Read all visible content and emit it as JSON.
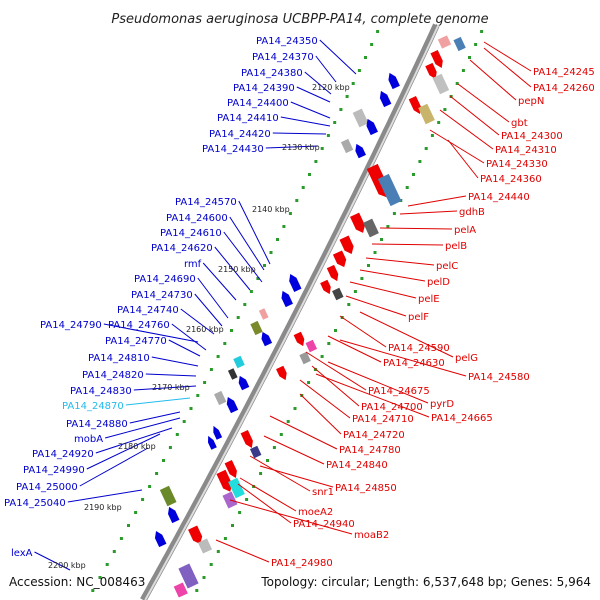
{
  "title": "Pseudomonas aeruginosa UCBPP-PA14, complete genome",
  "footer": {
    "accession": "Accession: NC_008463",
    "topology": "Topology: circular; Length: 6,537,648 bp; Genes: 5,964"
  },
  "colors": {
    "plus_label": "#e00000",
    "minus_label": "#0000cc",
    "selected_label": "#22bbee",
    "backbone": "#8a8a8a",
    "tick": "#2a9a2a"
  },
  "kbp_ticks": [
    "2120 kbp",
    "2130 kbp",
    "2140 kbp",
    "2150 kbp",
    "2160 kbp",
    "2170 kbp",
    "2180 kbp",
    "2190 kbp",
    "2200 kbp"
  ],
  "minus_strand_labels": [
    {
      "text": "PA14_24350",
      "color": "blue"
    },
    {
      "text": "PA14_24370",
      "color": "blue"
    },
    {
      "text": "PA14_24380",
      "color": "blue"
    },
    {
      "text": "PA14_24390",
      "color": "blue"
    },
    {
      "text": "PA14_24400",
      "color": "blue"
    },
    {
      "text": "PA14_24410",
      "color": "blue"
    },
    {
      "text": "PA14_24420",
      "color": "blue"
    },
    {
      "text": "PA14_24430",
      "color": "blue"
    },
    {
      "text": "PA14_24570",
      "color": "blue"
    },
    {
      "text": "PA14_24600",
      "color": "blue"
    },
    {
      "text": "PA14_24610",
      "color": "blue"
    },
    {
      "text": "PA14_24620",
      "color": "blue"
    },
    {
      "text": "rmf",
      "color": "blue"
    },
    {
      "text": "PA14_24690",
      "color": "blue"
    },
    {
      "text": "PA14_24730",
      "color": "blue"
    },
    {
      "text": "PA14_24740",
      "color": "blue"
    },
    {
      "text": "PA14_24790",
      "color": "blue"
    },
    {
      "text": "PA14_24760",
      "color": "blue"
    },
    {
      "text": "PA14_24770",
      "color": "blue"
    },
    {
      "text": "PA14_24810",
      "color": "blue"
    },
    {
      "text": "PA14_24820",
      "color": "blue"
    },
    {
      "text": "PA14_24830",
      "color": "blue"
    },
    {
      "text": "PA14_24870",
      "color": "cyan"
    },
    {
      "text": "PA14_24880",
      "color": "blue"
    },
    {
      "text": "mobA",
      "color": "blue"
    },
    {
      "text": "PA14_24920",
      "color": "blue"
    },
    {
      "text": "PA14_24990",
      "color": "blue"
    },
    {
      "text": "PA14_25000",
      "color": "blue"
    },
    {
      "text": "PA14_25040",
      "color": "blue"
    },
    {
      "text": "lexA",
      "color": "blue"
    }
  ],
  "plus_strand_labels": [
    {
      "text": "PA14_24245"
    },
    {
      "text": "PA14_24260"
    },
    {
      "text": "pepN"
    },
    {
      "text": "gbt"
    },
    {
      "text": "PA14_24300"
    },
    {
      "text": "PA14_24310"
    },
    {
      "text": "PA14_24330"
    },
    {
      "text": "PA14_24360"
    },
    {
      "text": "PA14_24440"
    },
    {
      "text": "gdhB"
    },
    {
      "text": "pelA"
    },
    {
      "text": "pelB"
    },
    {
      "text": "pelC"
    },
    {
      "text": "pelD"
    },
    {
      "text": "pelE"
    },
    {
      "text": "pelF"
    },
    {
      "text": "PA14_24590"
    },
    {
      "text": "pelG"
    },
    {
      "text": "PA14_24630"
    },
    {
      "text": "PA14_24580"
    },
    {
      "text": "PA14_24675"
    },
    {
      "text": "pyrD"
    },
    {
      "text": "PA14_24700"
    },
    {
      "text": "PA14_24665"
    },
    {
      "text": "PA14_24710"
    },
    {
      "text": "PA14_24720"
    },
    {
      "text": "PA14_24780"
    },
    {
      "text": "PA14_24840"
    },
    {
      "text": "snr1"
    },
    {
      "text": "PA14_24850"
    },
    {
      "text": "moeA2"
    },
    {
      "text": "PA14_24940"
    },
    {
      "text": "moaB2"
    },
    {
      "text": "PA14_24980"
    }
  ]
}
